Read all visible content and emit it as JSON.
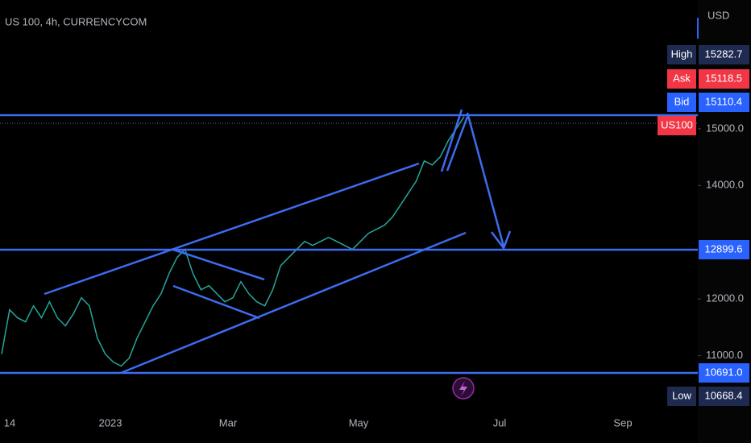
{
  "chart_data": {
    "type": "line",
    "title": "US 100, 4h, CURRENCYCOM",
    "currency": "USD",
    "color": "#26a69a",
    "values": [
      11028,
      11809,
      11667,
      11596,
      11879,
      11667,
      11950,
      11667,
      11525,
      11738,
      12021,
      11879,
      11312,
      11028,
      10887,
      10816,
      10957,
      11312,
      11596,
      11879,
      12092,
      12447,
      12730,
      12872,
      12447,
      12163,
      12234,
      12092,
      11950,
      12021,
      12305,
      12092,
      11950,
      11879,
      12163,
      12589,
      12730,
      12872,
      13014,
      12943,
      13014,
      13085,
      13014,
      12943,
      12872,
      13014,
      13156,
      13227,
      13298,
      13440,
      13652,
      13865,
      14078,
      14433,
      14362,
      14504,
      14787,
      15000,
      15213
    ],
    "ylim": [
      10000,
      17270
    ],
    "yticks": [
      {
        "value": 11000,
        "label": "11000.0"
      },
      {
        "value": 12000,
        "label": "12000.0"
      },
      {
        "value": 14000,
        "label": "14000.0"
      },
      {
        "value": 15000,
        "label": "15000.0"
      }
    ],
    "x_labels": [
      "14",
      "2023",
      "Mar",
      "May",
      "Jul",
      "Sep"
    ],
    "markers": [
      {
        "name": "High",
        "value": 15282.7,
        "color": "#1e2a4f"
      },
      {
        "name": "Ask",
        "value": 15118.5,
        "color": "#f23645"
      },
      {
        "name": "Bid",
        "value": 15110.4,
        "color": "#2962ff"
      },
      {
        "name": "US100",
        "color": "#f23645"
      },
      {
        "value": 12899.6,
        "color": "#2962ff"
      },
      {
        "value": {
          "value": 10691,
          "label": "10691.0"
        },
        "color": "#2962ff"
      },
      {
        "name": "Low",
        "value": 10668.4,
        "color": "#1e2a4f"
      }
    ]
  }
}
